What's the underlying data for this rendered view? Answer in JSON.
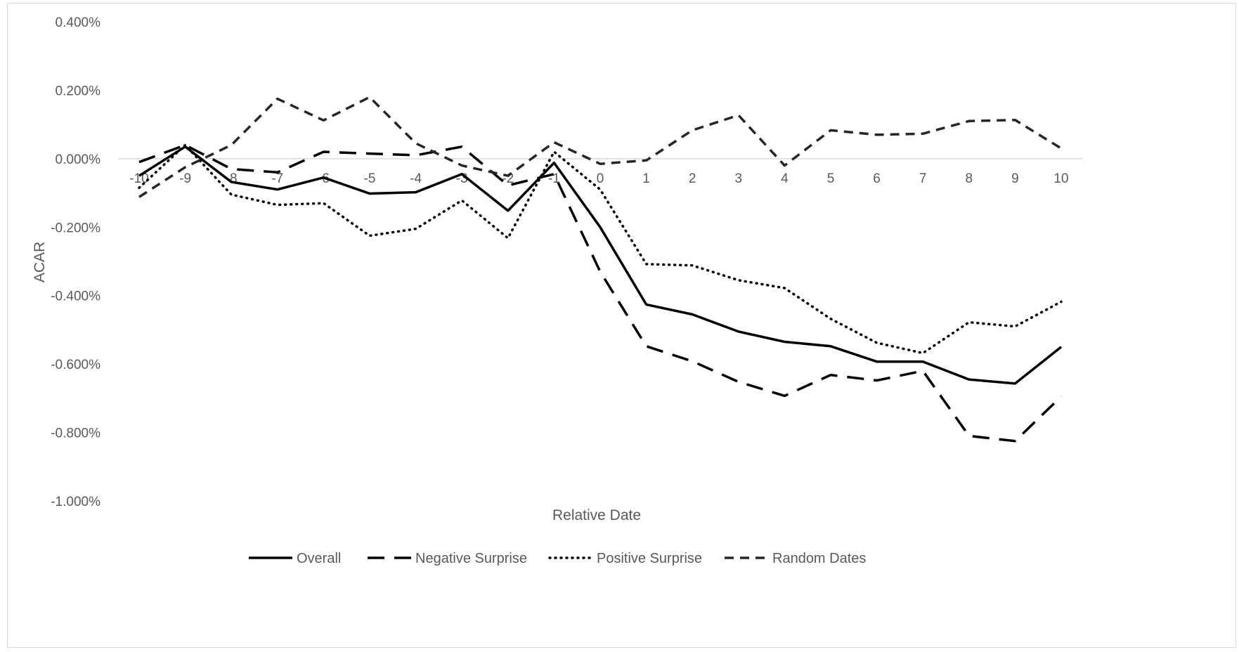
{
  "chart_data": {
    "type": "line",
    "title": "",
    "xlabel": "Relative Date",
    "ylabel": "ACAR",
    "x": [
      -10,
      -9,
      -8,
      -7,
      -6,
      -5,
      -4,
      -3,
      -2,
      -1,
      0,
      1,
      2,
      3,
      4,
      5,
      6,
      7,
      8,
      9,
      10
    ],
    "x_tick_labels": [
      "-10",
      "-9",
      "-8",
      "-7",
      "-6",
      "-5",
      "-4",
      "-3",
      "-2",
      "-1",
      "0",
      "1",
      "2",
      "3",
      "4",
      "5",
      "6",
      "7",
      "8",
      "9",
      "10"
    ],
    "y_tick_labels": [
      "0.400%",
      "0.200%",
      "0.000%",
      "-0.200%",
      "-0.400%",
      "-0.600%",
      "-0.800%",
      "-1.000%"
    ],
    "y_ticks": [
      0.4,
      0.2,
      0.0,
      -0.2,
      -0.4,
      -0.6,
      -0.8,
      -1.0
    ],
    "ylim": [
      -1.0,
      0.4
    ],
    "y_unit": "%",
    "grid": false,
    "legend_position": "bottom",
    "series": [
      {
        "name": "Overall",
        "style": "solid",
        "color": "#000000",
        "values": [
          -0.05,
          0.035,
          -0.068,
          -0.09,
          -0.055,
          -0.102,
          -0.098,
          -0.045,
          -0.152,
          -0.012,
          -0.2,
          -0.426,
          -0.455,
          -0.505,
          -0.535,
          -0.548,
          -0.593,
          -0.593,
          -0.645,
          -0.657,
          -0.55
        ]
      },
      {
        "name": "Negative Surprise",
        "style": "longdash",
        "color": "#000000",
        "values": [
          -0.01,
          0.04,
          -0.03,
          -0.04,
          0.02,
          0.015,
          0.01,
          0.035,
          -0.078,
          -0.045,
          -0.33,
          -0.548,
          -0.592,
          -0.652,
          -0.693,
          -0.632,
          -0.648,
          -0.62,
          -0.81,
          -0.825,
          -0.695
        ]
      },
      {
        "name": "Positive Surprise",
        "style": "dotted",
        "color": "#000000",
        "values": [
          -0.085,
          0.04,
          -0.105,
          -0.135,
          -0.13,
          -0.225,
          -0.205,
          -0.122,
          -0.232,
          0.02,
          -0.09,
          -0.308,
          -0.312,
          -0.355,
          -0.378,
          -0.468,
          -0.538,
          -0.568,
          -0.478,
          -0.49,
          -0.418
        ]
      },
      {
        "name": "Random Dates",
        "style": "dash",
        "color": "#262626",
        "values": [
          -0.112,
          -0.025,
          0.04,
          0.175,
          0.112,
          0.18,
          0.045,
          -0.02,
          -0.05,
          0.048,
          -0.015,
          -0.005,
          0.083,
          0.127,
          -0.02,
          0.083,
          0.07,
          0.073,
          0.11,
          0.113,
          0.03
        ]
      }
    ]
  }
}
